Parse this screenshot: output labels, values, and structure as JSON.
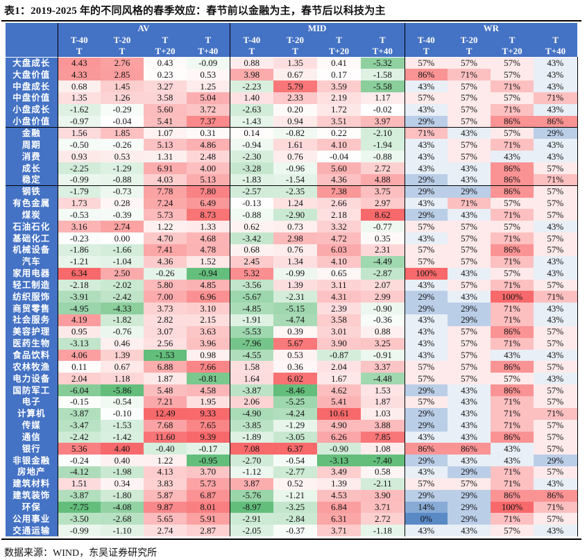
{
  "title": "表1：2019-2025 年的不同风格的春季效应：春节前以金融为主，春节后以科技为主",
  "source": "数据来源：WIND，东吴证券研究所",
  "colors": {
    "header": "#4472C4",
    "positive": "#F8696B",
    "negative": "#63BE7B",
    "low_wr": "#5A8AC6",
    "neutral": "#FFFFFF"
  },
  "header": {
    "groups": [
      "AV",
      "MID",
      "WR"
    ],
    "sub1": [
      "T-40",
      "T-20",
      "T",
      "T"
    ],
    "sub2": [
      "T",
      "T",
      "T+20",
      "T+40"
    ]
  },
  "groups": [
    {
      "rows": [
        {
          "name": "大盘成长",
          "v": [
            "4.43",
            "2.76",
            "0.43",
            "-0.09",
            "0.88",
            "1.35",
            "0.41",
            "-5.32",
            "57%",
            "57%",
            "57%",
            "43%"
          ]
        },
        {
          "name": "大盘价值",
          "v": [
            "4.33",
            "2.85",
            "0.23",
            "0.53",
            "3.98",
            "0.67",
            "0.17",
            "-1.58",
            "86%",
            "71%",
            "57%",
            "43%"
          ]
        },
        {
          "name": "中盘成长",
          "v": [
            "0.68",
            "1.45",
            "3.27",
            "1.25",
            "-2.23",
            "5.79",
            "3.59",
            "-5.58",
            "43%",
            "57%",
            "71%",
            "43%"
          ]
        },
        {
          "name": "中盘价值",
          "v": [
            "1.35",
            "1.26",
            "3.58",
            "5.04",
            "1.40",
            "2.33",
            "2.19",
            "1.17",
            "57%",
            "57%",
            "57%",
            "71%"
          ]
        },
        {
          "name": "小盘成长",
          "v": [
            "-1.62",
            "-0.29",
            "5.60",
            "3.72",
            "-2.63",
            "0.20",
            "1.72",
            "-0.02",
            "43%",
            "57%",
            "71%",
            "43%"
          ]
        },
        {
          "name": "小盘价值",
          "v": [
            "-0.97",
            "-0.04",
            "5.41",
            "7.37",
            "-1.43",
            "0.94",
            "3.51",
            "3.97",
            "29%",
            "57%",
            "86%",
            "86%"
          ]
        }
      ]
    },
    {
      "rows": [
        {
          "name": "金融",
          "v": [
            "1.56",
            "1.85",
            "1.07",
            "0.31",
            "0.14",
            "-0.82",
            "0.22",
            "-2.10",
            "71%",
            "43%",
            "57%",
            "29%"
          ]
        },
        {
          "name": "周期",
          "v": [
            "-0.50",
            "-0.26",
            "5.13",
            "4.86",
            "-0.94",
            "1.61",
            "4.10",
            "-1.94",
            "43%",
            "57%",
            "71%",
            "43%"
          ]
        },
        {
          "name": "消费",
          "v": [
            "0.93",
            "0.53",
            "1.31",
            "2.48",
            "-2.30",
            "0.76",
            "-0.04",
            "-0.88",
            "43%",
            "57%",
            "43%",
            "43%"
          ]
        },
        {
          "name": "成长",
          "v": [
            "-2.25",
            "-1.29",
            "6.91",
            "4.00",
            "-3.28",
            "-0.96",
            "5.60",
            "2.72",
            "43%",
            "43%",
            "86%",
            "57%"
          ]
        },
        {
          "name": "稳定",
          "v": [
            "-0.99",
            "-0.88",
            "4.03",
            "5.13",
            "-1.83",
            "-1.54",
            "4.36",
            "4.88",
            "29%",
            "43%",
            "86%",
            "71%"
          ]
        }
      ]
    },
    {
      "rows": [
        {
          "name": "钢铁",
          "v": [
            "-1.79",
            "-0.73",
            "7.78",
            "7.80",
            "-2.57",
            "-2.35",
            "7.38",
            "3.75",
            "29%",
            "29%",
            "86%",
            "57%"
          ]
        },
        {
          "name": "有色金属",
          "v": [
            "1.73",
            "0.28",
            "7.24",
            "6.49",
            "-0.13",
            "1.24",
            "2.66",
            "2.97",
            "43%",
            "71%",
            "57%",
            "57%"
          ]
        },
        {
          "name": "煤炭",
          "v": [
            "-0.53",
            "-0.39",
            "5.73",
            "8.73",
            "-0.88",
            "-2.90",
            "2.18",
            "8.62",
            "29%",
            "43%",
            "71%",
            "57%"
          ]
        },
        {
          "name": "石油石化",
          "v": [
            "3.16",
            "2.74",
            "1.22",
            "1.33",
            "0.62",
            "0.73",
            "3.32",
            "-0.77",
            "57%",
            "57%",
            "57%",
            "43%"
          ]
        },
        {
          "name": "基础化工",
          "v": [
            "-0.23",
            "0.00",
            "4.70",
            "4.68",
            "-3.42",
            "2.98",
            "4.72",
            "0.35",
            "43%",
            "57%",
            "71%",
            "57%"
          ]
        },
        {
          "name": "机械设备",
          "v": [
            "-1.86",
            "-1.66",
            "7.41",
            "4.78",
            "0.68",
            "0.76",
            "6.03",
            "2.31",
            "57%",
            "57%",
            "86%",
            "57%"
          ]
        },
        {
          "name": "汽车",
          "v": [
            "-1.21",
            "-1.04",
            "4.36",
            "1.52",
            "2.45",
            "1.34",
            "4.10",
            "-4.49",
            "57%",
            "57%",
            "71%",
            "43%"
          ]
        },
        {
          "name": "家用电器",
          "v": [
            "6.34",
            "2.50",
            "-0.26",
            "-0.94",
            "5.32",
            "-0.99",
            "0.65",
            "-2.87",
            "100%",
            "43%",
            "57%",
            "43%"
          ]
        },
        {
          "name": "轻工制造",
          "v": [
            "-2.18",
            "-2.02",
            "5.80",
            "4.85",
            "-3.56",
            "1.39",
            "3.11",
            "2.07",
            "43%",
            "57%",
            "71%",
            "57%"
          ]
        },
        {
          "name": "纺织服饰",
          "v": [
            "-3.91",
            "-2.42",
            "7.00",
            "6.96",
            "-5.67",
            "-2.31",
            "4.31",
            "2.99",
            "29%",
            "43%",
            "100%",
            "71%"
          ]
        },
        {
          "name": "商贸零售",
          "v": [
            "-4.95",
            "-4.33",
            "3.73",
            "3.10",
            "-4.85",
            "-5.15",
            "2.39",
            "-0.90",
            "29%",
            "29%",
            "71%",
            "43%"
          ]
        },
        {
          "name": "社会服务",
          "v": [
            "4.19",
            "-1.82",
            "2.82",
            "2.15",
            "-1.91",
            "-4.74",
            "3.58",
            "-0.36",
            "43%",
            "29%",
            "71%",
            "43%"
          ]
        },
        {
          "name": "美容护理",
          "v": [
            "0.95",
            "-0.76",
            "3.07",
            "3.63",
            "-5.53",
            "0.39",
            "3.01",
            "0.88",
            "43%",
            "57%",
            "86%",
            "57%"
          ]
        },
        {
          "name": "医药生物",
          "v": [
            "-3.13",
            "0.46",
            "2.56",
            "3.96",
            "-7.96",
            "5.67",
            "3.90",
            "3.25",
            "43%",
            "57%",
            "71%",
            "57%"
          ]
        },
        {
          "name": "食品饮料",
          "v": [
            "4.06",
            "1.39",
            "-1.53",
            "0.98",
            "-4.55",
            "0.53",
            "-0.87",
            "-0.91",
            "43%",
            "57%",
            "43%",
            "43%"
          ]
        },
        {
          "name": "农林牧渔",
          "v": [
            "0.11",
            "0.67",
            "6.88",
            "7.66",
            "1.58",
            "0.36",
            "2.04",
            "3.37",
            "57%",
            "57%",
            "86%",
            "57%"
          ]
        },
        {
          "name": "电力设备",
          "v": [
            "2.04",
            "1.18",
            "1.87",
            "-0.81",
            "1.64",
            "6.02",
            "1.67",
            "-4.48",
            "57%",
            "57%",
            "57%",
            "43%"
          ]
        },
        {
          "name": "国防军工",
          "v": [
            "-6.04",
            "-5.86",
            "5.48",
            "4.58",
            "-3.87",
            "-8.46",
            "4.62",
            "1.53",
            "29%",
            "43%",
            "86%",
            "57%"
          ]
        },
        {
          "name": "电子",
          "v": [
            "-0.15",
            "-0.54",
            "7.21",
            "1.95",
            "2.06",
            "-5.25",
            "5.41",
            "1.87",
            "57%",
            "43%",
            "71%",
            "57%"
          ]
        },
        {
          "name": "计算机",
          "v": [
            "-3.87",
            "-0.10",
            "12.49",
            "9.33",
            "-4.90",
            "-4.24",
            "10.61",
            "1.03",
            "29%",
            "43%",
            "71%",
            "71%"
          ]
        },
        {
          "name": "传媒",
          "v": [
            "-3.47",
            "-1.53",
            "7.68",
            "7.65",
            "-3.85",
            "-1.29",
            "4.90",
            "3.88",
            "29%",
            "43%",
            "71%",
            "57%"
          ]
        },
        {
          "name": "通信",
          "v": [
            "-2.42",
            "-1.42",
            "11.60",
            "9.39",
            "-1.89",
            "-3.05",
            "6.26",
            "7.85",
            "43%",
            "43%",
            "86%",
            "57%"
          ]
        },
        {
          "name": "银行",
          "v": [
            "5.36",
            "4.40",
            "-0.40",
            "-0.17",
            "7.08",
            "6.37",
            "-0.90",
            "1.08",
            "86%",
            "86%",
            "43%",
            "57%"
          ]
        },
        {
          "name": "非银金融",
          "v": [
            "-0.24",
            "0.40",
            "1.22",
            "-0.95",
            "-2.70",
            "-0.54",
            "-3.13",
            "-7.40",
            "29%",
            "43%",
            "43%",
            "29%"
          ]
        },
        {
          "name": "房地产",
          "v": [
            "-4.12",
            "-1.98",
            "4.13",
            "3.70",
            "-1.12",
            "-2.77",
            "3.49",
            "0.58",
            "43%",
            "29%",
            "71%",
            "57%"
          ]
        },
        {
          "name": "建筑材料",
          "v": [
            "1.51",
            "0.34",
            "3.83",
            "5.73",
            "3.87",
            "0.52",
            "1.39",
            "-2.11",
            "57%",
            "57%",
            "71%",
            "43%"
          ]
        },
        {
          "name": "建筑装饰",
          "v": [
            "-3.87",
            "-1.80",
            "5.87",
            "6.87",
            "-5.76",
            "-1.21",
            "4.53",
            "3.90",
            "29%",
            "29%",
            "86%",
            "86%"
          ]
        },
        {
          "name": "环保",
          "v": [
            "-7.75",
            "-4.08",
            "9.87",
            "8.01",
            "-8.97",
            "-3.25",
            "6.84",
            "3.71",
            "14%",
            "29%",
            "100%",
            "71%"
          ]
        },
        {
          "name": "公用事业",
          "v": [
            "-3.50",
            "-2.68",
            "5.65",
            "5.91",
            "-2.91",
            "-2.84",
            "6.31",
            "2.72",
            "0%",
            "29%",
            "71%",
            "57%"
          ]
        },
        {
          "name": "交通运输",
          "v": [
            "-0.99",
            "-1.10",
            "2.74",
            "2.87",
            "-2.05",
            "-0.37",
            "3.71",
            "-1.18",
            "43%",
            "43%",
            "57%",
            "43%"
          ]
        }
      ]
    }
  ]
}
